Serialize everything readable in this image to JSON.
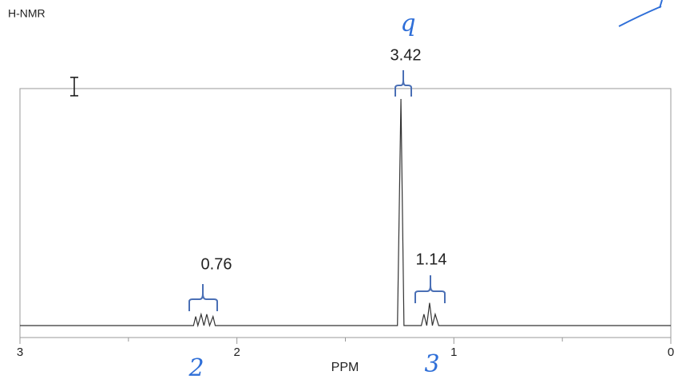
{
  "chart_data": {
    "type": "line",
    "title": "H-NMR",
    "x_label": "PPM",
    "x": [
      3,
      2.2,
      2.19,
      2.18,
      2.165,
      2.152,
      2.139,
      2.126,
      2.11,
      2.1,
      1.26,
      1.244,
      1.23,
      1.15,
      1.138,
      1.125,
      1.112,
      1.099,
      1.086,
      1.07,
      0
    ],
    "values": [
      0,
      0,
      4,
      0,
      5,
      0,
      5,
      0,
      4,
      0,
      0,
      100,
      0,
      0,
      5,
      0,
      10,
      0,
      5,
      0,
      0
    ],
    "color": "#333333",
    "xlim": [
      3,
      0
    ],
    "xticks": [
      3,
      2,
      1,
      0
    ],
    "xminorticks": [
      2.5,
      1.5,
      0.5
    ],
    "annotations": [
      "3.42",
      "0.76",
      "1.14"
    ],
    "handwritten": [
      "q",
      "2",
      "3"
    ]
  }
}
